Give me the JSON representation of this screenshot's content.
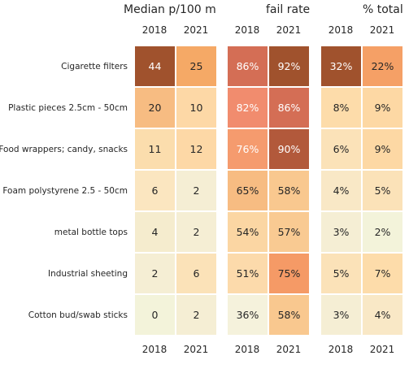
{
  "chart_data": [
    {
      "type": "heatmap",
      "title": "Median p/100 m",
      "columns": [
        "2018",
        "2021"
      ],
      "rows": [
        "Cigarette filters",
        "Plastic pieces 2.5cm - 50cm",
        "Food wrappers; candy, snacks",
        "Foam polystyrene  2.5 - 50cm",
        "metal bottle tops",
        "Industrial sheeting",
        "Cotton bud/swab sticks"
      ],
      "values": [
        [
          44,
          25
        ],
        [
          20,
          10
        ],
        [
          11,
          12
        ],
        [
          6,
          2
        ],
        [
          4,
          2
        ],
        [
          2,
          6
        ],
        [
          0,
          2
        ]
      ],
      "labels": [
        [
          "44",
          "25"
        ],
        [
          "20",
          "10"
        ],
        [
          "11",
          "12"
        ],
        [
          "6",
          "2"
        ],
        [
          "4",
          "2"
        ],
        [
          "2",
          "6"
        ],
        [
          "0",
          "2"
        ]
      ],
      "colors": [
        [
          "#a0522d",
          "#f5a966"
        ],
        [
          "#f7bc82",
          "#fdd8a6"
        ],
        [
          "#fbddad",
          "#fdd8a6"
        ],
        [
          "#fbe6c0",
          "#f5eed4"
        ],
        [
          "#f5ecce",
          "#f5eed4"
        ],
        [
          "#f5eed4",
          "#fbe2b8"
        ],
        [
          "#f3f3da",
          "#f5eed4"
        ]
      ],
      "text_colors": [
        [
          "#ffffff",
          "#262626"
        ],
        [
          "#262626",
          "#262626"
        ],
        [
          "#262626",
          "#262626"
        ],
        [
          "#262626",
          "#262626"
        ],
        [
          "#262626",
          "#262626"
        ],
        [
          "#262626",
          "#262626"
        ],
        [
          "#262626",
          "#262626"
        ]
      ]
    },
    {
      "type": "heatmap",
      "title": "fail rate",
      "columns": [
        "2018",
        "2021"
      ],
      "values": [
        [
          86,
          92
        ],
        [
          82,
          86
        ],
        [
          76,
          90
        ],
        [
          65,
          58
        ],
        [
          54,
          57
        ],
        [
          51,
          75
        ],
        [
          36,
          58
        ]
      ],
      "labels": [
        [
          "86%",
          "92%"
        ],
        [
          "82%",
          "86%"
        ],
        [
          "76%",
          "90%"
        ],
        [
          "65%",
          "58%"
        ],
        [
          "54%",
          "57%"
        ],
        [
          "51%",
          "75%"
        ],
        [
          "36%",
          "58%"
        ]
      ],
      "colors": [
        [
          "#d46e55",
          "#a0522d"
        ],
        [
          "#f18c6e",
          "#d46e55"
        ],
        [
          "#f59b6e",
          "#b2593b"
        ],
        [
          "#f7bc82",
          "#f9c88f"
        ],
        [
          "#fbd6a3",
          "#f9ca92"
        ],
        [
          "#fcdaab",
          "#f59a66"
        ],
        [
          "#f5f2dc",
          "#f9c88f"
        ]
      ],
      "text_colors": [
        [
          "#ffffff",
          "#ffffff"
        ],
        [
          "#ffffff",
          "#ffffff"
        ],
        [
          "#ffffff",
          "#ffffff"
        ],
        [
          "#262626",
          "#262626"
        ],
        [
          "#262626",
          "#262626"
        ],
        [
          "#262626",
          "#262626"
        ],
        [
          "#262626",
          "#262626"
        ]
      ]
    },
    {
      "type": "heatmap",
      "title": "% total",
      "columns": [
        "2018",
        "2021"
      ],
      "values": [
        [
          32,
          22
        ],
        [
          8,
          9
        ],
        [
          6,
          9
        ],
        [
          4,
          5
        ],
        [
          3,
          2
        ],
        [
          5,
          7
        ],
        [
          3,
          4
        ]
      ],
      "labels": [
        [
          "32%",
          "22%"
        ],
        [
          "8%",
          "9%"
        ],
        [
          "6%",
          "9%"
        ],
        [
          "4%",
          "5%"
        ],
        [
          "3%",
          "2%"
        ],
        [
          "5%",
          "7%"
        ],
        [
          "3%",
          "4%"
        ]
      ],
      "colors": [
        [
          "#a0522d",
          "#f5a066"
        ],
        [
          "#fddcaa",
          "#fdd8a4"
        ],
        [
          "#fbe2b8",
          "#fdd8a4"
        ],
        [
          "#f9e8c6",
          "#fbe2b8"
        ],
        [
          "#f5eed4",
          "#f3f3da"
        ],
        [
          "#fbe2b8",
          "#fddcaa"
        ],
        [
          "#f5eed4",
          "#f9e8c6"
        ]
      ],
      "text_colors": [
        [
          "#ffffff",
          "#262626"
        ],
        [
          "#262626",
          "#262626"
        ],
        [
          "#262626",
          "#262626"
        ],
        [
          "#262626",
          "#262626"
        ],
        [
          "#262626",
          "#262626"
        ],
        [
          "#262626",
          "#262626"
        ],
        [
          "#262626",
          "#262626"
        ]
      ]
    }
  ]
}
